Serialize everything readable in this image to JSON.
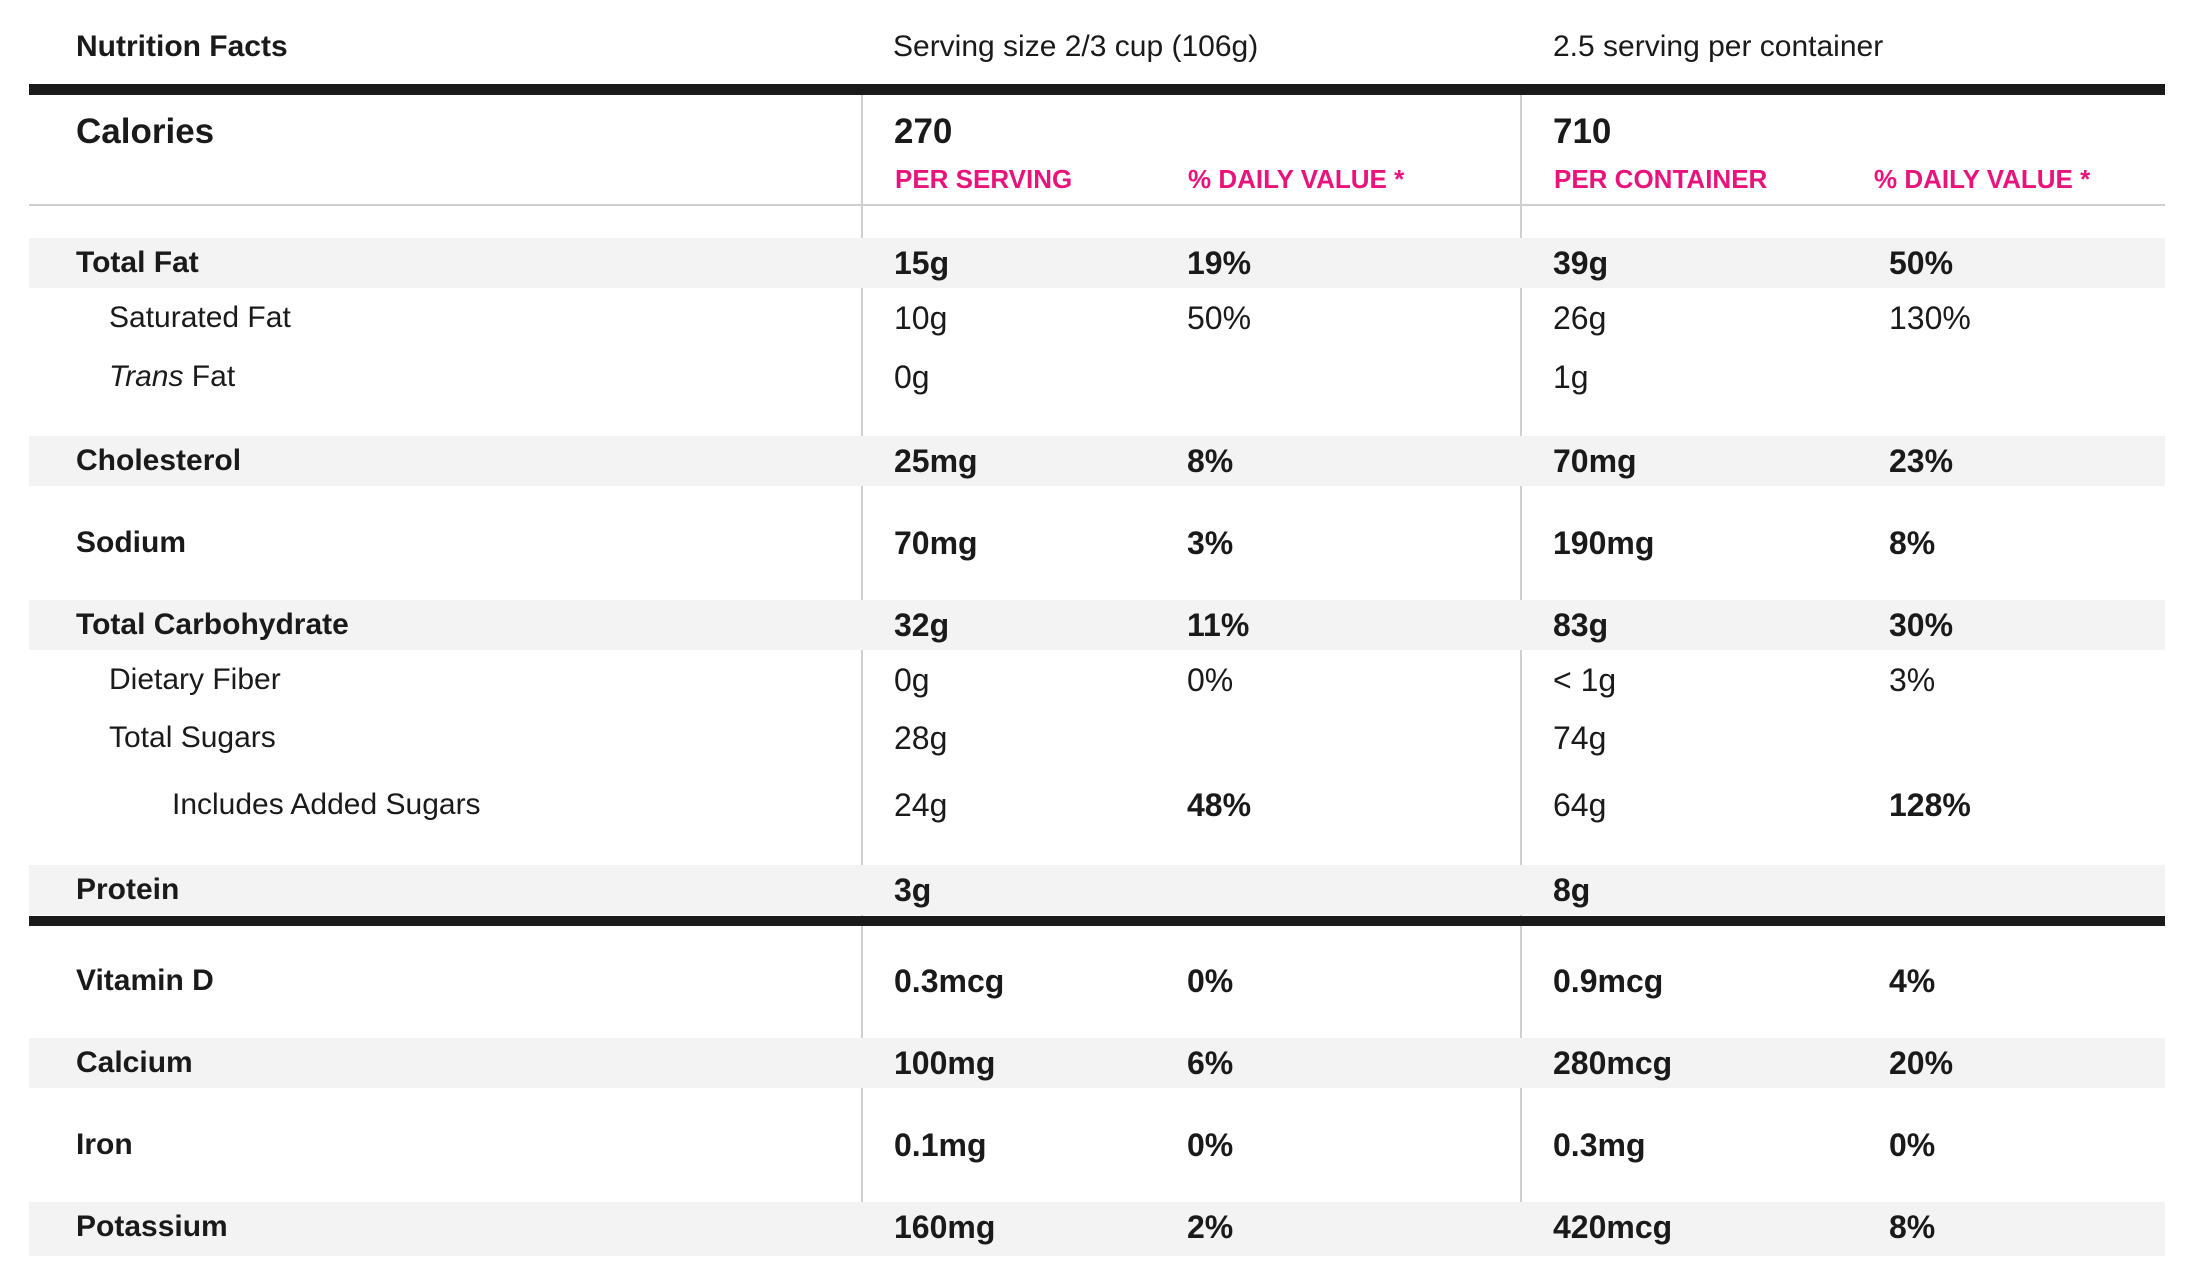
{
  "header": {
    "title": "Nutrition Facts",
    "serving_size": "Serving size 2/3 cup (106g)",
    "servings_per_container": "2.5 serving per container"
  },
  "calories": {
    "label": "Calories",
    "per_serving": "270",
    "per_container": "710"
  },
  "column_headers": {
    "per_serving": "PER SERVING",
    "dv_serving": "% DAILY VALUE *",
    "per_container": "PER CONTAINER",
    "dv_container": "% DAILY VALUE *"
  },
  "nutrients": [
    {
      "label": "Total Fat",
      "serving": "15g",
      "dv_serving": "19%",
      "container": "39g",
      "dv_container": "50%"
    },
    {
      "label": "Saturated Fat",
      "serving": "10g",
      "dv_serving": "50%",
      "container": "26g",
      "dv_container": "130%"
    },
    {
      "label_italic": "Trans",
      "label": " Fat",
      "serving": "0g",
      "dv_serving": "",
      "container": "1g",
      "dv_container": ""
    },
    {
      "label": "Cholesterol",
      "serving": "25mg",
      "dv_serving": "8%",
      "container": "70mg",
      "dv_container": "23%"
    },
    {
      "label": "Sodium",
      "serving": "70mg",
      "dv_serving": "3%",
      "container": "190mg",
      "dv_container": "8%"
    },
    {
      "label": "Total Carbohydrate",
      "serving": "32g",
      "dv_serving": "11%",
      "container": "83g",
      "dv_container": "30%"
    },
    {
      "label": "Dietary Fiber",
      "serving": "0g",
      "dv_serving": "0%",
      "container": "< 1g",
      "dv_container": "3%"
    },
    {
      "label": "Total Sugars",
      "serving": "28g",
      "dv_serving": "",
      "container": "74g",
      "dv_container": ""
    },
    {
      "label": "Includes Added Sugars",
      "serving": "24g",
      "dv_serving": "48%",
      "container": "64g",
      "dv_container": "128%"
    },
    {
      "label": "Protein",
      "serving": "3g",
      "dv_serving": "",
      "container": "8g",
      "dv_container": ""
    }
  ],
  "vitamins": [
    {
      "label": "Vitamin D",
      "serving": "0.3mcg",
      "dv_serving": "0%",
      "container": "0.9mcg",
      "dv_container": "4%"
    },
    {
      "label": "Calcium",
      "serving": "100mg",
      "dv_serving": "6%",
      "container": "280mcg",
      "dv_container": "20%"
    },
    {
      "label": "Iron",
      "serving": "0.1mg",
      "dv_serving": "0%",
      "container": "0.3mg",
      "dv_container": "0%"
    },
    {
      "label": "Potassium",
      "serving": "160mg",
      "dv_serving": "2%",
      "container": "420mcg",
      "dv_container": "8%"
    }
  ],
  "colors": {
    "accent": "#e8137b",
    "text": "#1a1a1a",
    "shade": "#f3f3f3",
    "rule": "#cfcfcf"
  }
}
